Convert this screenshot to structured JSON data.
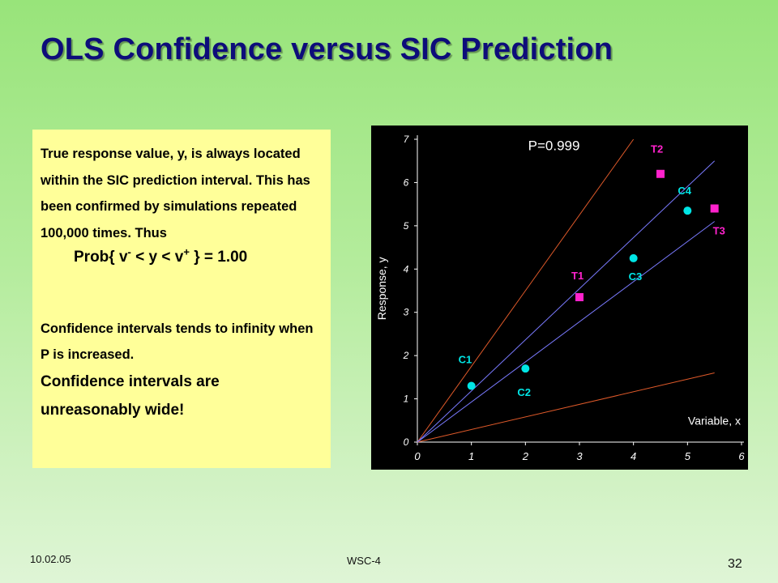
{
  "slide": {
    "title": "OLS Confidence versus SIC Prediction",
    "text": {
      "paragraph1": "True response value, y, is always located within the SIC prediction interval. This has been confirmed by simulations repeated 100,000 times. Thus",
      "prob_part1": "Prob{ v",
      "prob_sup1": "-",
      "prob_part2": " < y < v",
      "prob_sup2": "+",
      "prob_part3": " } = 1.00",
      "paragraph2": "Confidence intervals tends to infinity when P is increased.",
      "paragraph3": "Confidence intervals are unreasonably wide!"
    },
    "footer": {
      "date": "10.02.05",
      "center": "WSC-4",
      "page_number": "32"
    }
  },
  "chart_data": {
    "type": "scatter",
    "annotation": "P=0.999",
    "xlabel": "Variable, x",
    "ylabel": "Response, y",
    "xlim": [
      0,
      6
    ],
    "ylim": [
      0,
      7
    ],
    "x_ticks": [
      "0",
      "1",
      "2",
      "3",
      "4",
      "5",
      "6"
    ],
    "y_ticks": [
      "0",
      "1",
      "2",
      "3",
      "4",
      "5",
      "6",
      "7"
    ],
    "grid": false,
    "background": "#000000",
    "lines": [
      {
        "role": "ols-upper",
        "color": "#e05a2a",
        "x": [
          0,
          4
        ],
        "y": [
          0,
          7
        ]
      },
      {
        "role": "ols-lower",
        "color": "#e05a2a",
        "x": [
          0,
          5.5
        ],
        "y": [
          0,
          1.6
        ]
      },
      {
        "role": "sic-upper",
        "color": "#7a7aff",
        "x": [
          0,
          5.5
        ],
        "y": [
          0,
          6.5
        ]
      },
      {
        "role": "sic-lower",
        "color": "#7a7aff",
        "x": [
          0,
          5.5
        ],
        "y": [
          0,
          5.1
        ]
      }
    ],
    "series": [
      {
        "marker": "circle",
        "color": "#00e5e5",
        "label_color": "#00e5e5",
        "points": [
          {
            "label": "C1",
            "x": 1.0,
            "y": 1.3
          },
          {
            "label": "C2",
            "x": 2.0,
            "y": 1.7
          },
          {
            "label": "C3",
            "x": 4.0,
            "y": 4.25
          },
          {
            "label": "C4",
            "x": 5.0,
            "y": 5.35
          }
        ]
      },
      {
        "marker": "square",
        "color": "#ff22cc",
        "label_color": "#ff22cc",
        "points": [
          {
            "label": "T1",
            "x": 3.0,
            "y": 3.35
          },
          {
            "label": "T2",
            "x": 4.5,
            "y": 6.2
          },
          {
            "label": "T3",
            "x": 5.5,
            "y": 5.4
          }
        ]
      }
    ]
  }
}
